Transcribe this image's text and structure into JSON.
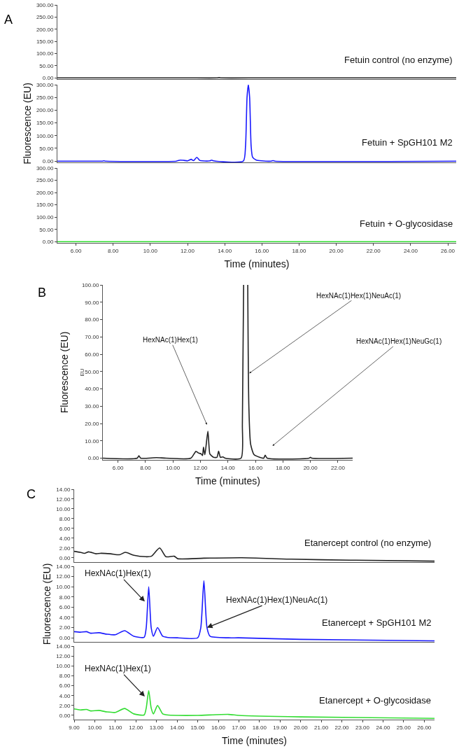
{
  "chart_data": [
    {
      "type": "line",
      "title": "A",
      "tick_labels": "y",
      "xlim": [
        5.0,
        26.45
      ],
      "ylim": [
        -5,
        300
      ],
      "yticks": [
        {
          "value": 0,
          "label": "0.00"
        },
        {
          "value": 50,
          "label": "50.00"
        },
        {
          "value": 100,
          "label": "100.00"
        },
        {
          "value": 150,
          "label": "150.00"
        },
        {
          "value": 200,
          "label": "200.00"
        },
        {
          "value": 250,
          "label": "250.00"
        },
        {
          "value": 300,
          "label": "300.00"
        }
      ],
      "series": [
        {
          "name": "Fetuin control (no enzyme)",
          "color": "#222222",
          "x": [
            5.0,
            7.5,
            10,
            12,
            13.6,
            13.7,
            13.8,
            16,
            20,
            26.45
          ],
          "values": [
            0,
            0,
            0,
            0,
            0,
            1,
            0,
            0,
            0,
            0
          ]
        }
      ]
    },
    {
      "type": "line",
      "ylabel": "Fluorescence (EU)",
      "tick_labels": "y",
      "xlim": [
        5.0,
        26.45
      ],
      "ylim": [
        -5,
        300
      ],
      "yticks": [
        {
          "value": 0,
          "label": "0.00"
        },
        {
          "value": 50,
          "label": "50.00"
        },
        {
          "value": 100,
          "label": "100.00"
        },
        {
          "value": 150,
          "label": "150.00"
        },
        {
          "value": 200,
          "label": "200.00"
        },
        {
          "value": 250,
          "label": "250.00"
        },
        {
          "value": 300,
          "label": "300.00"
        }
      ],
      "series": [
        {
          "name": "Fetuin + SpGH101 M2",
          "color": "#1a1aff",
          "x": [
            5.0,
            7.4,
            7.5,
            7.6,
            11.4,
            11.6,
            11.8,
            12.0,
            12.2,
            12.32,
            12.5,
            12.65,
            12.8,
            13.2,
            13.3,
            13.4,
            15.0,
            15.12,
            15.2,
            15.27,
            15.34,
            15.42,
            15.5,
            15.7,
            16.0,
            16.5,
            16.6,
            16.7,
            26.45
          ],
          "values": [
            0,
            0,
            1,
            0,
            0,
            4,
            3,
            1,
            7,
            2,
            15,
            3,
            1,
            1,
            4,
            1,
            0,
            60,
            250,
            300,
            250,
            60,
            15,
            4,
            1,
            0,
            2,
            0,
            0
          ]
        }
      ]
    },
    {
      "type": "line",
      "xlabel": "Time (minutes)",
      "xlim": [
        5.0,
        26.45
      ],
      "ylim": [
        -5,
        300
      ],
      "xticks": [
        {
          "value": 6,
          "label": "6.00"
        },
        {
          "value": 8,
          "label": "8.00"
        },
        {
          "value": 10,
          "label": "10.00"
        },
        {
          "value": 12,
          "label": "12.00"
        },
        {
          "value": 14,
          "label": "14.00"
        },
        {
          "value": 16,
          "label": "16.00"
        },
        {
          "value": 18,
          "label": "18.00"
        },
        {
          "value": 20,
          "label": "20.00"
        },
        {
          "value": 22,
          "label": "22.00"
        },
        {
          "value": 24,
          "label": "24.00"
        },
        {
          "value": 26,
          "label": "26.00"
        }
      ],
      "yticks": [
        {
          "value": 0,
          "label": "0.00"
        },
        {
          "value": 50,
          "label": "50.00"
        },
        {
          "value": 100,
          "label": "100.00"
        },
        {
          "value": 150,
          "label": "150.00"
        },
        {
          "value": 200,
          "label": "200.00"
        },
        {
          "value": 250,
          "label": "250.00"
        },
        {
          "value": 300,
          "label": "300.00"
        }
      ],
      "series": [
        {
          "name": "Fetuin + O-glycosidase",
          "color": "#33dd33",
          "x": [
            5.0,
            10,
            15,
            20,
            26.45
          ],
          "values": [
            0,
            0,
            0,
            0,
            0
          ]
        }
      ]
    },
    {
      "type": "line",
      "title": "B",
      "ylabel": "Fluorescence (EU)",
      "xlabel": "Time (minutes)",
      "xlim": [
        4.9,
        23.07
      ],
      "ylim": [
        -1,
        100
      ],
      "xticks": [
        {
          "value": 6,
          "label": "6.00"
        },
        {
          "value": 8,
          "label": "8.00"
        },
        {
          "value": 10,
          "label": "10.00"
        },
        {
          "value": 12,
          "label": "12.00"
        },
        {
          "value": 14,
          "label": "14.00"
        },
        {
          "value": 16,
          "label": "16.00"
        },
        {
          "value": 18,
          "label": "18.00"
        },
        {
          "value": 20,
          "label": "20.00"
        },
        {
          "value": 22,
          "label": "22.00"
        }
      ],
      "yticks": [
        {
          "value": 0,
          "label": "0.00"
        },
        {
          "value": 10,
          "label": "10.00"
        },
        {
          "value": 20,
          "label": "20.00"
        },
        {
          "value": 30,
          "label": "30.00"
        },
        {
          "value": 40,
          "label": "40.00"
        },
        {
          "value": 50,
          "label": "50.00"
        },
        {
          "value": 60,
          "label": "60.00"
        },
        {
          "value": 70,
          "label": "70.00"
        },
        {
          "value": 80,
          "label": "80.00"
        },
        {
          "value": 90,
          "label": "90.00"
        },
        {
          "value": 100,
          "label": "100.00"
        }
      ],
      "annotations": [
        {
          "text": "HexNAc(1)Hex(1)",
          "x": 12.47,
          "y": 19.3
        },
        {
          "text": "HexNAc(1)Hex(1)NeuAc(1)",
          "x": 15.55,
          "y": 49
        },
        {
          "text": "HexNAc(1)Hex(1)NeuGc(1)",
          "x": 17.24,
          "y": 7.1
        },
        "EU"
      ],
      "series": [
        {
          "color": "#222222",
          "x": [
            4.9,
            7.4,
            7.52,
            7.65,
            8.8,
            9.5,
            11.3,
            11.67,
            11.85,
            12.05,
            12.15,
            12.22,
            12.32,
            12.54,
            12.68,
            12.79,
            12.95,
            13.2,
            13.32,
            13.45,
            13.64,
            13.8,
            14.95,
            15.05,
            15.14,
            15.3,
            15.44,
            15.52,
            15.65,
            15.9,
            16.3,
            16.6,
            16.71,
            16.85,
            19.9,
            20.0,
            20.1,
            23.07
          ],
          "values": [
            0,
            0,
            1.4,
            0,
            0.3,
            0,
            0,
            3.9,
            3.0,
            2.5,
            1.5,
            6.4,
            2,
            15.5,
            2.5,
            1.5,
            0.5,
            0.5,
            4,
            0.5,
            0.7,
            0,
            0,
            20,
            100,
            null,
            100,
            30,
            8,
            2,
            0.5,
            0,
            1.7,
            0,
            0,
            0.5,
            0,
            0
          ]
        }
      ]
    },
    {
      "type": "line",
      "title": "C",
      "tick_labels": "y",
      "xlim": [
        9,
        26.5
      ],
      "ylim": [
        -0.9,
        14
      ],
      "yticks": [
        {
          "value": 0,
          "label": "0.00"
        },
        {
          "value": 2,
          "label": "2.00"
        },
        {
          "value": 4,
          "label": "4.00"
        },
        {
          "value": 6,
          "label": "6.00"
        },
        {
          "value": 8,
          "label": "8.00"
        },
        {
          "value": 10,
          "label": "10.00"
        },
        {
          "value": 12,
          "label": "12.00"
        },
        {
          "value": 14,
          "label": "14.00"
        }
      ],
      "series": [
        {
          "name": "Etanercept control (no enzyme)",
          "color": "#222222",
          "x": [
            9.0,
            9.3,
            9.5,
            9.7,
            10.06,
            10.27,
            10.77,
            11.2,
            11.48,
            11.9,
            12.47,
            12.75,
            13.15,
            13.46,
            13.86,
            14.03,
            15.3,
            17.14,
            19.55,
            22.4,
            26.5
          ],
          "values": [
            1.3,
            1.1,
            0.9,
            1.2,
            0.8,
            0.9,
            0.8,
            0.6,
            1.1,
            0.5,
            0.2,
            0.3,
            2.0,
            0.2,
            0.3,
            -0.2,
            -0.1,
            0.0,
            -0.3,
            -0.5,
            -0.7
          ]
        }
      ]
    },
    {
      "type": "line",
      "ylabel": "Fluorescence (EU)",
      "tick_labels": "y",
      "xlim": [
        9,
        26.5
      ],
      "ylim": [
        -0.8,
        14
      ],
      "yticks": [
        {
          "value": 0,
          "label": "0.00"
        },
        {
          "value": 2,
          "label": "2.00"
        },
        {
          "value": 4,
          "label": "4.00"
        },
        {
          "value": 6,
          "label": "6.00"
        },
        {
          "value": 8,
          "label": "8.00"
        },
        {
          "value": 10,
          "label": "10.00"
        },
        {
          "value": 12,
          "label": "12.00"
        },
        {
          "value": 14,
          "label": "14.00"
        }
      ],
      "annotations": [
        {
          "text": "HexNAc(1)Hex(1)",
          "x": 12.43,
          "y": 7.1
        },
        {
          "text": "HexNAc(1)Hex(1)NeuAc(1)",
          "x": 15.45,
          "y": 2.0
        }
      ],
      "series": [
        {
          "name": "Etanercept + SpGH101 M2",
          "color": "#1a1aff",
          "x": [
            9.0,
            9.3,
            9.6,
            9.8,
            10.2,
            10.6,
            11.0,
            11.45,
            11.9,
            12.4,
            12.5,
            12.62,
            12.74,
            12.85,
            13.05,
            13.3,
            13.5,
            14.0,
            15.0,
            15.15,
            15.3,
            15.45,
            15.6,
            16.5,
            17.0,
            20.0,
            26.5
          ],
          "values": [
            1.2,
            1.1,
            1.2,
            0.9,
            1.0,
            0.7,
            0.6,
            1.4,
            0.3,
            0.1,
            2.0,
            10.0,
            2.0,
            0.3,
            2.0,
            0.3,
            0.1,
            0.0,
            0.0,
            2.0,
            11.2,
            2.0,
            0.3,
            0.0,
            0.0,
            -0.3,
            -0.6
          ]
        }
      ]
    },
    {
      "type": "line",
      "xlabel": "Time (minutes)",
      "xlim": [
        9,
        26.5
      ],
      "ylim": [
        -0.85,
        14
      ],
      "xticks": [
        {
          "value": 9,
          "label": "9.00"
        },
        {
          "value": 10,
          "label": "10.00"
        },
        {
          "value": 11,
          "label": "11.00"
        },
        {
          "value": 12,
          "label": "12.00"
        },
        {
          "value": 13,
          "label": "13.00"
        },
        {
          "value": 14,
          "label": "14.00"
        },
        {
          "value": 15,
          "label": "15.00"
        },
        {
          "value": 16,
          "label": "16.00"
        },
        {
          "value": 17,
          "label": "17.00"
        },
        {
          "value": 18,
          "label": "18.00"
        },
        {
          "value": 19,
          "label": "19.00"
        },
        {
          "value": 20,
          "label": "20.00"
        },
        {
          "value": 21,
          "label": "21.00"
        },
        {
          "value": 22,
          "label": "22.00"
        },
        {
          "value": 23,
          "label": "23.00"
        },
        {
          "value": 24,
          "label": "24.00"
        },
        {
          "value": 25,
          "label": "25.00"
        },
        {
          "value": 26,
          "label": "26.00"
        }
      ],
      "yticks": [
        {
          "value": 0,
          "label": "0.00"
        },
        {
          "value": 2,
          "label": "2.00"
        },
        {
          "value": 4,
          "label": "4.00"
        },
        {
          "value": 6,
          "label": "6.00"
        },
        {
          "value": 8,
          "label": "8.00"
        },
        {
          "value": 10,
          "label": "10.00"
        },
        {
          "value": 12,
          "label": "12.00"
        },
        {
          "value": 14,
          "label": "14.00"
        }
      ],
      "annotations": [
        {
          "text": "HexNAc(1)Hex(1)",
          "x": 12.43,
          "y": 3.8
        }
      ],
      "series": [
        {
          "name": "Etanercept + O-glycosidase",
          "color": "#33dd33",
          "x": [
            9.0,
            9.3,
            9.6,
            9.8,
            10.2,
            10.6,
            11.0,
            11.45,
            11.9,
            12.4,
            12.5,
            12.62,
            12.74,
            12.85,
            13.05,
            13.3,
            13.5,
            14.0,
            15.0,
            16.5,
            17.0,
            20.0,
            26.5
          ],
          "values": [
            1.3,
            1.1,
            1.2,
            0.9,
            1.0,
            0.7,
            0.6,
            1.4,
            0.3,
            0.1,
            1.5,
            5.0,
            1.5,
            0.3,
            2.0,
            0.3,
            0.1,
            0.0,
            0.0,
            0.2,
            0.0,
            -0.3,
            -0.6
          ]
        }
      ]
    }
  ]
}
